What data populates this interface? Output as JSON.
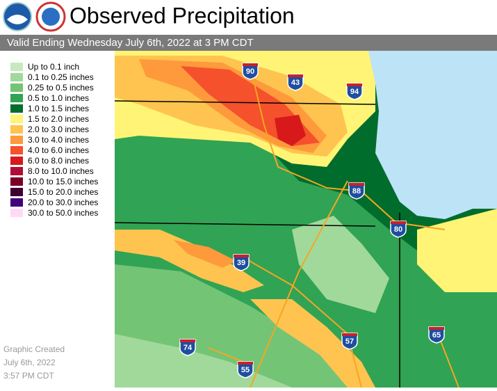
{
  "header": {
    "title": "Observed Precipitation",
    "subtitle": "Valid Ending Wednesday July 6th, 2022 at 3 PM CDT"
  },
  "legend": [
    {
      "label": "Up to 0.1 inch",
      "color": "#c7e9c0"
    },
    {
      "label": "0.1 to 0.25 inches",
      "color": "#a1d99b"
    },
    {
      "label": "0.25 to 0.5 inches",
      "color": "#74c476"
    },
    {
      "label": "0.5 to 1.0 inches",
      "color": "#31a354"
    },
    {
      "label": "1.0 to 1.5 inches",
      "color": "#006d2c"
    },
    {
      "label": "1.5 to 2.0 inches",
      "color": "#fff475"
    },
    {
      "label": "2.0 to 3.0 inches",
      "color": "#fec44f"
    },
    {
      "label": "3.0 to 4.0 inches",
      "color": "#fe9a3c"
    },
    {
      "label": "4.0 to 6.0 inches",
      "color": "#f4512c"
    },
    {
      "label": "6.0 to 8.0 inches",
      "color": "#d7191c"
    },
    {
      "label": "8.0 to 10.0 inches",
      "color": "#b00d35"
    },
    {
      "label": "10.0 to 15.0 inches",
      "color": "#7a0026"
    },
    {
      "label": "15.0 to 20.0 inches",
      "color": "#3d0030"
    },
    {
      "label": "20.0 to 30.0 inches",
      "color": "#3f007d"
    },
    {
      "label": "30.0 to 50.0 inches",
      "color": "#ffd9f7"
    }
  ],
  "highways": [
    "90",
    "43",
    "94",
    "88",
    "80",
    "39",
    "57",
    "65",
    "74",
    "55"
  ],
  "footer": {
    "line1": "Graphic Created",
    "line2": "July 6th, 2022",
    "line3": "3:57 PM CDT"
  }
}
